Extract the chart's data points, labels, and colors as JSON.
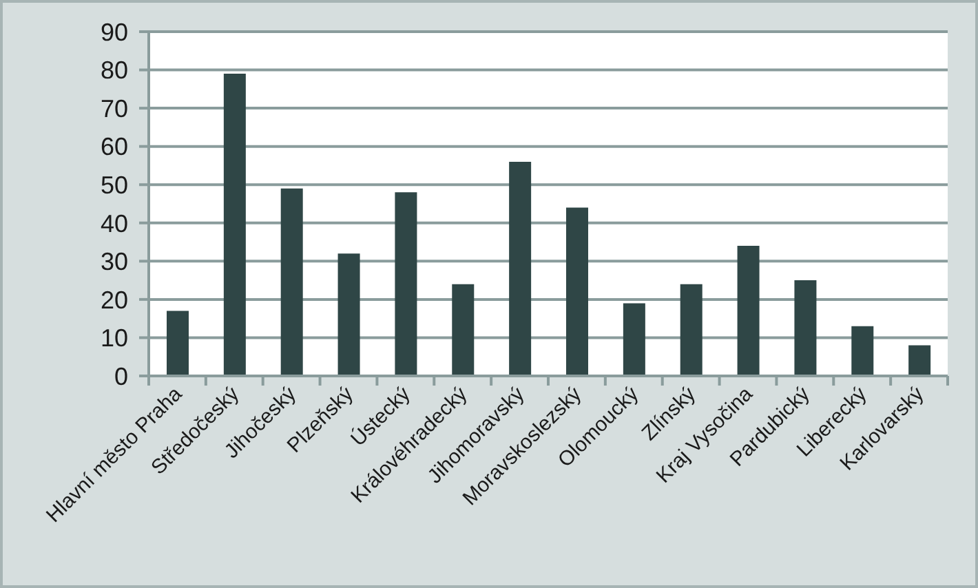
{
  "chart_data": {
    "type": "bar",
    "categories": [
      "Hlavní město Praha",
      "Středočeský",
      "Jihočeský",
      "Plzeňský",
      "Ústecký",
      "Královéhradecký",
      "Jihomoravský",
      "Moravskoslezský",
      "Olomoucký",
      "Zlínský",
      "Kraj Vysočina",
      "Pardubický",
      "Liberecký",
      "Karlovarský"
    ],
    "values": [
      17,
      79,
      49,
      32,
      48,
      24,
      56,
      44,
      19,
      24,
      34,
      25,
      13,
      8
    ],
    "color": "#2f4646",
    "ylim": [
      0,
      90
    ],
    "yticks": [
      0,
      10,
      20,
      30,
      40,
      50,
      60,
      70,
      80,
      90
    ],
    "grid": "y"
  }
}
